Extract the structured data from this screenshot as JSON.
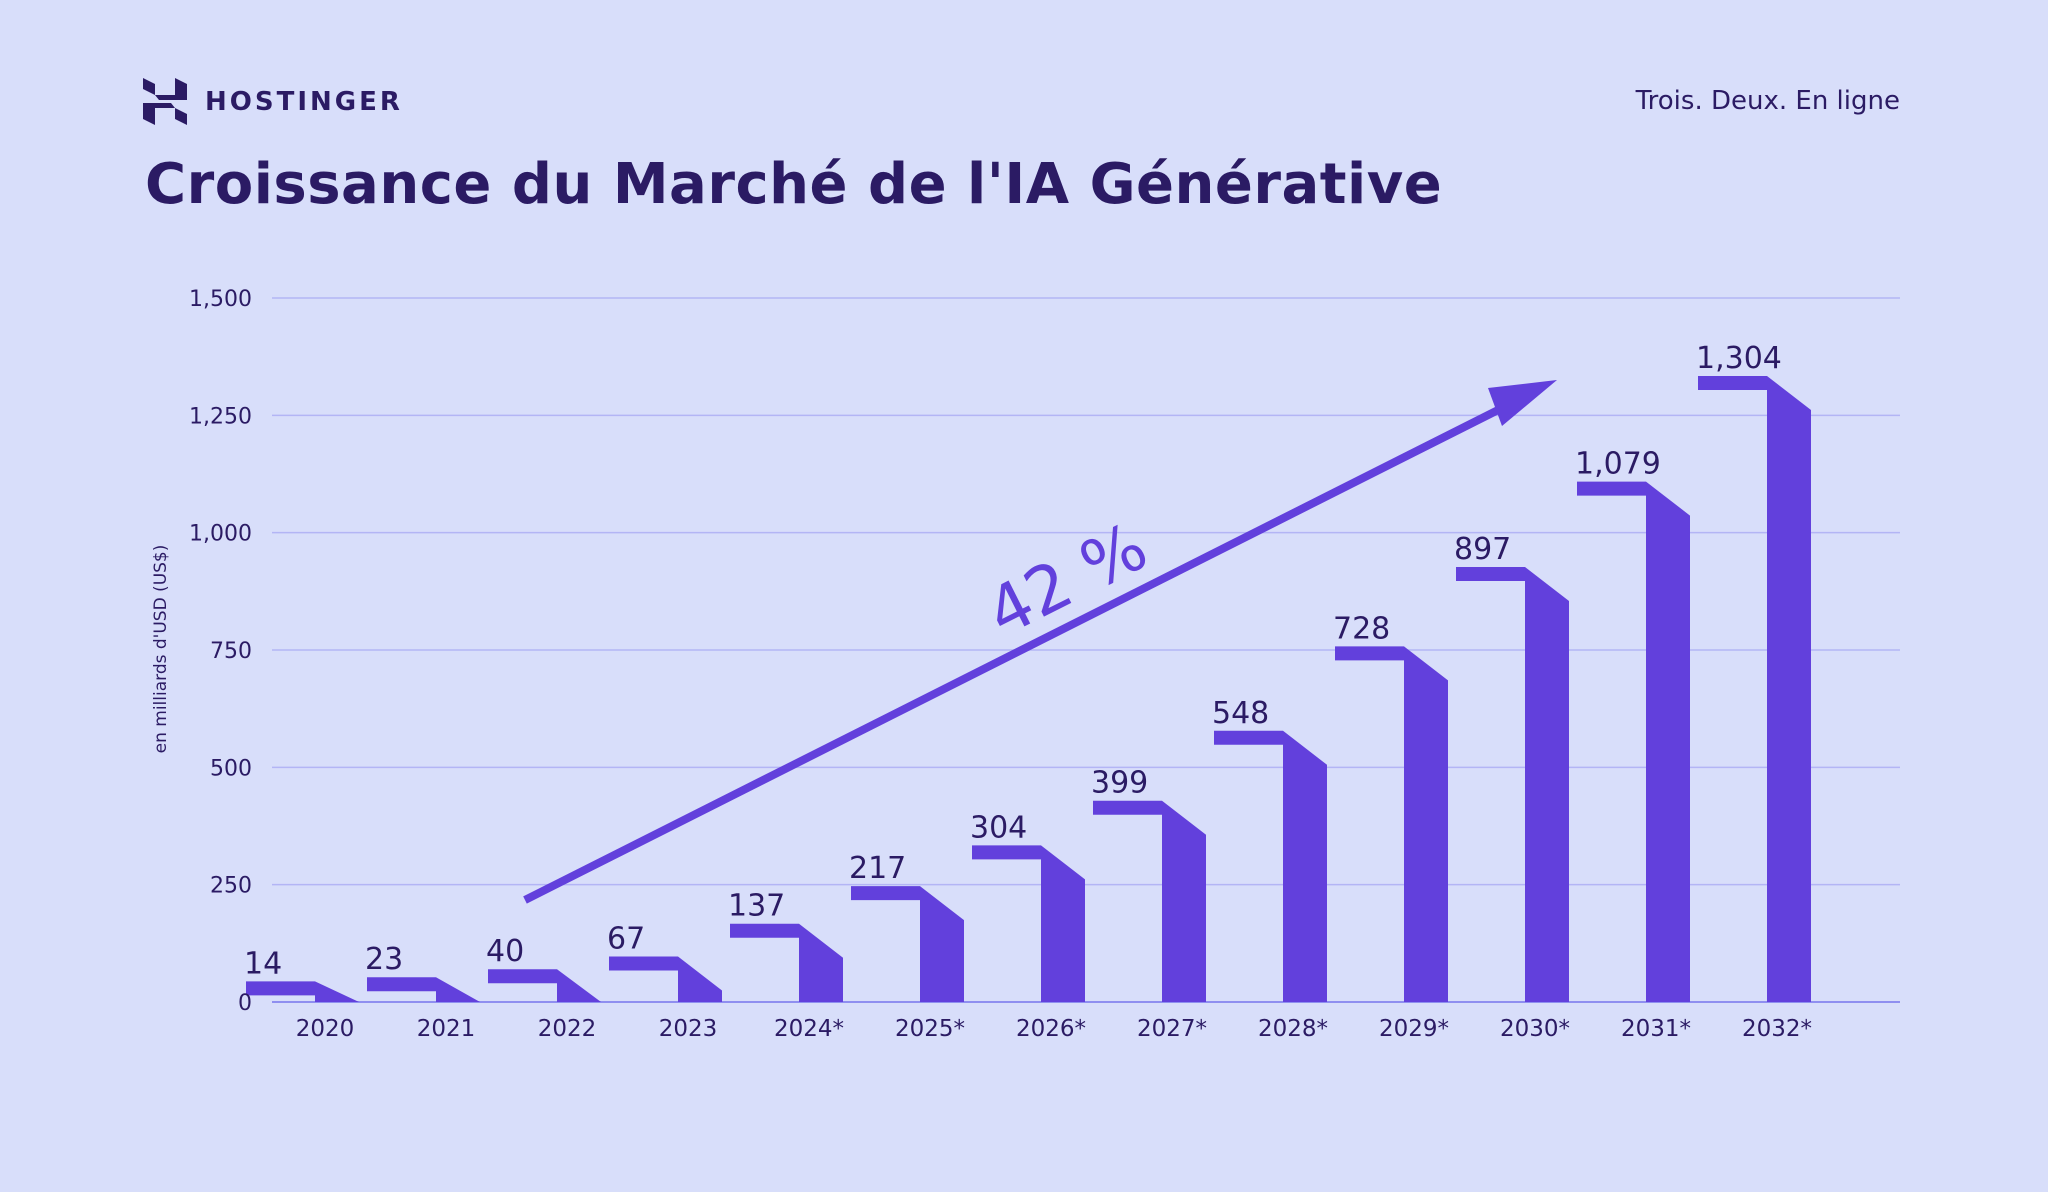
{
  "brand": {
    "name": "HOSTINGER",
    "logo_icon": "hostinger-h-logo"
  },
  "tagline": "Trois. Deux. En ligne",
  "colors": {
    "background": "#d8defa",
    "bar": "#6240dc",
    "text": "#2b1b64",
    "grid": "#b3b5f5"
  },
  "chart_data": {
    "type": "bar",
    "title": "Croissance du Marché de l'IA Générative",
    "ylabel": "en milliards d'USD (US$)",
    "xlabel": "",
    "ylim": [
      0,
      1500
    ],
    "yticks": [
      "0",
      "250",
      "500",
      "750",
      "1,000",
      "1,250",
      "1,500"
    ],
    "ytick_values": [
      0,
      250,
      500,
      750,
      1000,
      1250,
      1500
    ],
    "grid": true,
    "categories": [
      "2020",
      "2021",
      "2022",
      "2023",
      "2024*",
      "2025*",
      "2026*",
      "2027*",
      "2028*",
      "2029*",
      "2030*",
      "2031*",
      "2032*"
    ],
    "values": [
      14,
      23,
      40,
      67,
      137,
      217,
      304,
      399,
      548,
      728,
      897,
      1079,
      1304
    ],
    "value_labels": [
      "14",
      "23",
      "40",
      "67",
      "137",
      "217",
      "304",
      "399",
      "548",
      "728",
      "897",
      "1,079",
      "1,304"
    ],
    "annotation": {
      "text": "42 %",
      "type": "growth-arrow"
    }
  }
}
